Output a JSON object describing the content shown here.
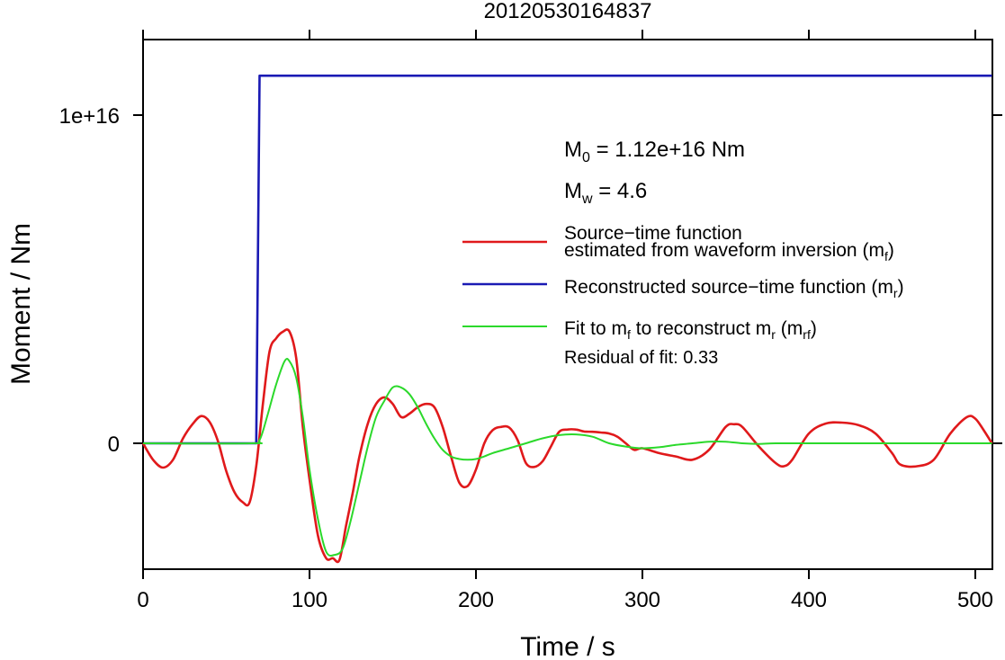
{
  "chart_data": {
    "type": "line",
    "title": "20120530164837",
    "xlabel": "Time / s",
    "ylabel": "Moment / Nm",
    "xlim": [
      0,
      510
    ],
    "ylim": [
      -3850000000000000.0,
      1.23e+16
    ],
    "x_ticks": [
      0,
      100,
      200,
      300,
      400,
      500
    ],
    "x_tick_labels": [
      "0",
      "100",
      "200",
      "300",
      "400",
      "500"
    ],
    "y_ticks": [
      0,
      1e+16
    ],
    "y_tick_labels": [
      "0",
      "1e+16"
    ],
    "annotations": {
      "m0_symbol": "M",
      "m0_sub": "0",
      "m0_rest": " = 1.12e+16 Nm",
      "mw_symbol": "M",
      "mw_sub": "w",
      "mw_rest": " = 4.6",
      "residual": "Residual of fit: 0.33"
    },
    "legend": {
      "placement": "right",
      "red_line1": "Source−time function",
      "red_line2": "estimated from waveform inversion (m",
      "red_sub": "f",
      "red_close": ")",
      "blue_text": "Reconstructed source−time function (m",
      "blue_sub": "r",
      "blue_close": ")",
      "green_a": "Fit to m",
      "green_sub1": "f",
      "green_b": " to reconstruct m",
      "green_sub2": "r",
      "green_c": " (m",
      "green_sub3": "rf",
      "green_d": ")"
    },
    "series": [
      {
        "color": "#e0191b",
        "x": [
          0,
          6,
          12,
          18,
          24,
          30,
          35,
          40,
          45,
          50,
          55,
          60,
          64,
          68,
          72,
          76,
          80,
          84,
          88,
          92,
          96,
          100,
          105,
          110,
          114,
          118,
          122,
          126,
          130,
          135,
          140,
          145,
          150,
          155,
          160,
          165,
          170,
          175,
          180,
          185,
          190,
          195,
          200,
          205,
          210,
          215,
          220,
          225,
          230,
          235,
          240,
          245,
          250,
          255,
          260,
          265,
          270,
          275,
          280,
          285,
          290,
          295,
          300,
          310,
          320,
          330,
          340,
          350,
          355,
          360,
          370,
          380,
          385,
          390,
          400,
          410,
          420,
          430,
          440,
          450,
          455,
          465,
          475,
          485,
          495,
          500,
          505,
          510
        ],
        "y": [
          0,
          -500000000000000.0,
          -740000000000000.0,
          -500000000000000.0,
          150000000000000.0,
          600000000000000.0,
          830000000000000.0,
          650000000000000.0,
          60000000000000.0,
          -850000000000000.0,
          -1500000000000000.0,
          -1800000000000000.0,
          -1800000000000000.0,
          -700000000000000.0,
          1200000000000000.0,
          2800000000000000.0,
          3200000000000000.0,
          3400000000000000.0,
          3400000000000000.0,
          2600000000000000.0,
          500000000000000.0,
          -1100000000000000.0,
          -2800000000000000.0,
          -3500000000000000.0,
          -3500000000000000.0,
          -3550000000000000.0,
          -2500000000000000.0,
          -1500000000000000.0,
          -400000000000000.0,
          600000000000000.0,
          1200000000000000.0,
          1400000000000000.0,
          1200000000000000.0,
          800000000000000.0,
          900000000000000.0,
          1100000000000000.0,
          1200000000000000.0,
          1100000000000000.0,
          500000000000000.0,
          -400000000000000.0,
          -1200000000000000.0,
          -1300000000000000.0,
          -800000000000000.0,
          0,
          400000000000000.0,
          500000000000000.0,
          480000000000000.0,
          100000000000000.0,
          -600000000000000.0,
          -720000000000000.0,
          -550000000000000.0,
          -100000000000000.0,
          350000000000000.0,
          420000000000000.0,
          420000000000000.0,
          360000000000000.0,
          350000000000000.0,
          330000000000000.0,
          300000000000000.0,
          200000000000000.0,
          0,
          -200000000000000.0,
          -150000000000000.0,
          -300000000000000.0,
          -400000000000000.0,
          -500000000000000.0,
          -200000000000000.0,
          500000000000000.0,
          580000000000000.0,
          500000000000000.0,
          -100000000000000.0,
          -600000000000000.0,
          -700000000000000.0,
          -500000000000000.0,
          300000000000000.0,
          600000000000000.0,
          630000000000000.0,
          550000000000000.0,
          300000000000000.0,
          -300000000000000.0,
          -650000000000000.0,
          -700000000000000.0,
          -500000000000000.0,
          300000000000000.0,
          800000000000000.0,
          750000000000000.0,
          400000000000000.0,
          0
        ]
      },
      {
        "color": "#1a1ab4",
        "x": [
          0,
          68,
          70,
          510
        ],
        "y": [
          0,
          0,
          1.12e+16,
          1.12e+16
        ]
      },
      {
        "color": "#2bd92b",
        "x": [
          0,
          65,
          70,
          75,
          80,
          85,
          88,
          92,
          96,
          100,
          105,
          110,
          115,
          120,
          125,
          130,
          135,
          140,
          145,
          150,
          155,
          160,
          165,
          170,
          175,
          180,
          185,
          190,
          195,
          200,
          205,
          210,
          220,
          230,
          240,
          250,
          260,
          270,
          280,
          290,
          300,
          310,
          320,
          330,
          340,
          350,
          360,
          370,
          380,
          400,
          450,
          510
        ],
        "y": [
          0,
          0,
          100000000000000.0,
          900000000000000.0,
          1800000000000000.0,
          2500000000000000.0,
          2500000000000000.0,
          2000000000000000.0,
          800000000000000.0,
          -800000000000000.0,
          -2300000000000000.0,
          -3300000000000000.0,
          -3400000000000000.0,
          -3200000000000000.0,
          -2300000000000000.0,
          -1200000000000000.0,
          -100000000000000.0,
          800000000000000.0,
          1300000000000000.0,
          1700000000000000.0,
          1700000000000000.0,
          1500000000000000.0,
          1100000000000000.0,
          600000000000000.0,
          150000000000000.0,
          -200000000000000.0,
          -400000000000000.0,
          -480000000000000.0,
          -500000000000000.0,
          -480000000000000.0,
          -400000000000000.0,
          -300000000000000.0,
          -150000000000000.0,
          0,
          150000000000000.0,
          250000000000000.0,
          270000000000000.0,
          200000000000000.0,
          0,
          -100000000000000.0,
          -150000000000000.0,
          -120000000000000.0,
          -50000000000000.0,
          0,
          50000000000000.0,
          50000000000000.0,
          0,
          -20000000000000.0,
          0,
          0,
          0,
          0
        ]
      }
    ]
  }
}
